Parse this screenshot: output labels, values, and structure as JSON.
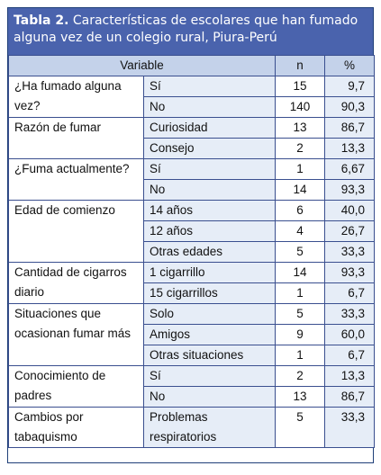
{
  "title": {
    "prefix": "Tabla 2.",
    "text": " Características de escolares que han fumado alguna vez de un colegio rural, Piura-Perú"
  },
  "header": {
    "variable": "Variable",
    "n": "n",
    "pct": "%"
  },
  "groups": [
    {
      "label": "¿Ha fumado alguna vez?",
      "rows": [
        {
          "sub": "Sí",
          "n": "15",
          "pct": "9,7"
        },
        {
          "sub": "No",
          "n": "140",
          "pct": "90,3"
        }
      ]
    },
    {
      "label": "Razón de fumar",
      "rows": [
        {
          "sub": "Curiosidad",
          "n": "13",
          "pct": "86,7"
        },
        {
          "sub": "Consejo",
          "n": "2",
          "pct": "13,3"
        }
      ]
    },
    {
      "label": "¿Fuma actualmente?",
      "rows": [
        {
          "sub": "Sí",
          "n": "1",
          "pct": "6,67"
        },
        {
          "sub": "No",
          "n": "14",
          "pct": "93,3"
        }
      ]
    },
    {
      "label": "Edad de comienzo",
      "rows": [
        {
          "sub": "14 años",
          "n": "6",
          "pct": "40,0"
        },
        {
          "sub": "12 años",
          "n": "4",
          "pct": "26,7"
        },
        {
          "sub": "Otras edades",
          "n": "5",
          "pct": "33,3"
        }
      ]
    },
    {
      "label": "Cantidad de cigarros diario",
      "rows": [
        {
          "sub": "1 cigarrillo",
          "n": "14",
          "pct": "93,3"
        },
        {
          "sub": "15 cigarrillos",
          "n": "1",
          "pct": "6,7"
        }
      ]
    },
    {
      "label": "Situaciones que ocasionan fumar más",
      "rows": [
        {
          "sub": "Solo",
          "n": "5",
          "pct": "33,3"
        },
        {
          "sub": "Amigos",
          "n": "9",
          "pct": "60,0"
        },
        {
          "sub": "Otras situaciones",
          "n": "1",
          "pct": "6,7"
        }
      ]
    },
    {
      "label": "Conocimiento de padres",
      "rows": [
        {
          "sub": "Sí",
          "n": "2",
          "pct": "13,3"
        },
        {
          "sub": "No",
          "n": "13",
          "pct": "86,7"
        }
      ]
    },
    {
      "label": "Cambios por tabaquismo",
      "rows": [
        {
          "sub": "Problemas respiratorios",
          "n": "5",
          "pct": "33,3"
        }
      ]
    }
  ]
}
